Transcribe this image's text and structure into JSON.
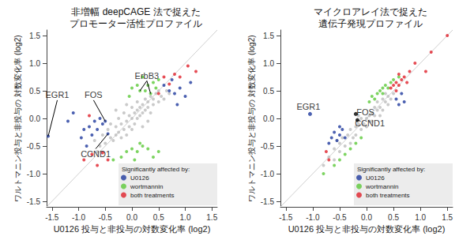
{
  "chart_data": [
    {
      "type": "scatter",
      "title": "非増幅 deepCAGE 法で捉えた\nプロモーター活性プロファイル",
      "xlabel": "U0126 投与と非投与の対数変化率 (log2)",
      "ylabel": "ワルトマニン投与と非投与の 対数変化率 (log2)",
      "xlim": [
        -1.6,
        1.6
      ],
      "ylim": [
        -1.6,
        1.6
      ],
      "xticks": [
        {
          "value": -1.5,
          "label": "-1.5"
        },
        {
          "value": -1,
          "label": "-1.0"
        },
        {
          "value": -0.5,
          "label": "-0.5"
        },
        {
          "value": 0,
          "label": "0.0"
        },
        {
          "value": 0.5,
          "label": "0.5"
        },
        {
          "value": 1,
          "label": "1.0"
        },
        {
          "value": 1.5,
          "label": "1.5"
        }
      ],
      "yticks": [
        {
          "value": -1.5,
          "label": "-1.5"
        },
        {
          "value": -1,
          "label": "-1.0"
        },
        {
          "value": -0.5,
          "label": "-0.5"
        },
        {
          "value": 0,
          "label": "0.0"
        },
        {
          "value": 0.5,
          "label": "0.5"
        },
        {
          "value": 1,
          "label": "1.0"
        },
        {
          "value": 1.5,
          "label": "1.5"
        }
      ],
      "grid": false,
      "marker": "circle",
      "legend": "lower right",
      "legend_title": "Significantly affected by:",
      "series": [
        {
          "color": "#bdbdbd",
          "x": [
            -0.6,
            -0.55,
            -0.5,
            -0.45,
            -0.4,
            -0.4,
            -0.35,
            -0.3,
            -0.3,
            -0.25,
            -0.25,
            -0.2,
            -0.2,
            -0.15,
            -0.15,
            -0.1,
            -0.1,
            -0.05,
            -0.05,
            0,
            0,
            0,
            0.05,
            0.05,
            0.1,
            0.1,
            0.1,
            0.15,
            0.15,
            0.2,
            0.2,
            0.25,
            0.25,
            0.3,
            0.3,
            0.35,
            0.35,
            0.4,
            0.4,
            0.45,
            0.5,
            0.5,
            0.55,
            0.6,
            -0.7,
            -0.65,
            0.65,
            0.7,
            -0.3,
            0.2,
            -0.1,
            0.3
          ],
          "y": [
            -0.5,
            -0.3,
            -0.45,
            -0.2,
            -0.35,
            -0.1,
            -0.4,
            -0.15,
            -0.3,
            0,
            -0.25,
            -0.35,
            -0.1,
            0.1,
            -0.2,
            -0.05,
            -0.3,
            0.05,
            -0.15,
            0,
            0.2,
            -0.2,
            0.1,
            -0.1,
            0.15,
            0,
            0.3,
            0.05,
            0.2,
            0.25,
            0.1,
            0.35,
            0.15,
            0.3,
            0.2,
            0.4,
            0.1,
            0.35,
            0.25,
            0.45,
            0.3,
            0.5,
            0.4,
            0.35,
            -0.4,
            -0.6,
            0.5,
            0.45,
            0.15,
            -0.15,
            0.25,
            -0.05
          ]
        },
        {
          "name": "U0126",
          "color": "#1f3a9e",
          "x": [
            -1.57,
            -1.2,
            -1.1,
            -0.95,
            -0.9,
            -0.85,
            -0.8,
            -0.75,
            -0.7,
            -0.65,
            -0.6,
            -0.55,
            -0.5,
            -0.45,
            0.6,
            0.7,
            0.8,
            0.9,
            1.0,
            1.1,
            0.75,
            0.85
          ],
          "y": [
            -0.32,
            -0.05,
            0.1,
            -0.35,
            -0.2,
            -0.5,
            -0.15,
            -0.3,
            -0.05,
            -0.2,
            0,
            -0.1,
            -0.05,
            -0.28,
            0.6,
            0.5,
            0.45,
            0.55,
            0.4,
            0.65,
            0.7,
            0.25
          ]
        },
        {
          "name": "wortmannin",
          "color": "#5cc93a",
          "x": [
            0,
            0.1,
            0.15,
            0.2,
            -0.05,
            0.3,
            0.35,
            0.25,
            0.4,
            0.5,
            -0.1,
            0,
            0.1,
            0.2,
            0.3,
            0.4,
            -0.2,
            0.05,
            0.5,
            0.15,
            -0.35,
            0.45
          ],
          "y": [
            0.55,
            0.6,
            0.5,
            0.75,
            0.4,
            0.6,
            0.45,
            0.5,
            0.65,
            0.7,
            -0.6,
            -0.55,
            -0.6,
            -0.5,
            -0.55,
            -0.7,
            -0.7,
            -0.75,
            -0.6,
            -0.45,
            -0.75,
            0.55
          ]
        },
        {
          "name": "both treatments",
          "color": "#e0202a",
          "x": [
            -0.9,
            -0.75,
            -0.55,
            -0.45,
            -0.8,
            0.5,
            0.6,
            0.7,
            0.8,
            0.9,
            1.05,
            1.2,
            -0.65
          ],
          "y": [
            -0.75,
            -0.65,
            -0.62,
            -0.75,
            0.05,
            0.45,
            0.75,
            0.62,
            0.8,
            0.75,
            0.95,
            0.85,
            -0.85
          ]
        }
      ],
      "annotations": [
        {
          "text": "EGR1",
          "x": -1.4,
          "y": 0.33,
          "targets": [
            [
              -1.57,
              -0.32
            ]
          ]
        },
        {
          "text": "FOS",
          "x": -0.72,
          "y": 0.33,
          "targets": [
            [
              -0.5,
              -0.05
            ]
          ]
        },
        {
          "text": "CCND1",
          "x": -0.68,
          "y": -0.55,
          "targets": [
            [
              -0.45,
              -0.28
            ]
          ]
        },
        {
          "text": "ErbB3",
          "x": 0.28,
          "y": 0.68,
          "targets": [
            [
              0.15,
              0.5
            ],
            [
              0.35,
              0.45
            ]
          ]
        }
      ]
    },
    {
      "type": "scatter",
      "title": "マイクロアレイ法で捉えた\n遺伝子発現プロファイル",
      "xlabel": "U0126 投与と非投与の対数変化率 (log2)",
      "ylabel": "ワルトマニン投与と非投与の 対数変化率 (log2)",
      "xlim": [
        -1.6,
        1.6
      ],
      "ylim": [
        -1.6,
        1.6
      ],
      "xticks": [
        {
          "value": -1.5,
          "label": "-1.5"
        },
        {
          "value": -1,
          "label": "-1.0"
        },
        {
          "value": -0.5,
          "label": "-0.5"
        },
        {
          "value": 0,
          "label": "0.0"
        },
        {
          "value": 0.5,
          "label": "0.5"
        },
        {
          "value": 1,
          "label": "1.0"
        },
        {
          "value": 1.5,
          "label": "1.5"
        }
      ],
      "yticks": [
        {
          "value": -1.5,
          "label": "-1.5"
        },
        {
          "value": -1,
          "label": "-1.0"
        },
        {
          "value": -0.5,
          "label": "-0.5"
        },
        {
          "value": 0,
          "label": "0.0"
        },
        {
          "value": 0.5,
          "label": "0.5"
        },
        {
          "value": 1,
          "label": "1.0"
        },
        {
          "value": 1.5,
          "label": "1.5"
        }
      ],
      "grid": false,
      "marker": "circle",
      "legend": "lower right",
      "legend_title": "Significantly affected by:",
      "series": [
        {
          "color": "#bdbdbd",
          "x": [
            -0.7,
            -0.6,
            -0.6,
            -0.5,
            -0.5,
            -0.45,
            -0.4,
            -0.35,
            -0.3,
            -0.3,
            -0.25,
            -0.2,
            -0.2,
            -0.15,
            -0.1,
            -0.1,
            -0.05,
            0,
            0,
            0.05,
            0.05,
            0.1,
            0.1,
            0.15,
            0.15,
            0.2,
            0.2,
            0.25,
            0.3,
            0.3,
            0.35,
            0.4,
            0.4,
            0.45,
            0.5,
            -0.8,
            -0.55,
            0.35,
            -0.15,
            0.25
          ],
          "y": [
            -0.7,
            -0.55,
            -0.75,
            -0.45,
            -0.6,
            -0.35,
            -0.5,
            -0.3,
            -0.45,
            -0.2,
            -0.35,
            -0.15,
            -0.3,
            -0.1,
            -0.2,
            0,
            -0.1,
            0,
            -0.15,
            0.05,
            -0.05,
            0.1,
            -0.05,
            0.2,
            0.05,
            0.15,
            0.3,
            0.2,
            0.35,
            0.15,
            0.3,
            0.4,
            0.25,
            0.35,
            0.45,
            -0.85,
            -0.4,
            0.45,
            0.05,
            0.05
          ]
        },
        {
          "name": "U0126",
          "color": "#1f3a9e",
          "x": [
            -0.65,
            -0.6,
            -0.55,
            -0.5,
            -0.45,
            -0.7,
            -0.4,
            -0.5,
            0.55,
            0.65,
            0.7,
            0.6
          ],
          "y": [
            -0.35,
            -0.25,
            -0.4,
            -0.3,
            -0.2,
            -0.45,
            -0.35,
            -0.15,
            0.35,
            0.45,
            0.3,
            0.25
          ]
        },
        {
          "name": "wortmannin",
          "color": "#5cc93a",
          "x": [
            0.1,
            0.2,
            0.25,
            0.3,
            0.35,
            0.4,
            0.45,
            0.15,
            0.5,
            0.3,
            -0.3,
            -0.4,
            -0.2,
            -0.5,
            -0.6,
            -0.1,
            0.05,
            -0.8,
            0.6
          ],
          "y": [
            0.4,
            0.45,
            0.5,
            0.55,
            0.6,
            0.55,
            0.65,
            0.35,
            0.7,
            0.45,
            -0.55,
            -0.65,
            -0.45,
            -0.75,
            -0.85,
            -0.35,
            0.3,
            -1.0,
            0.75
          ]
        },
        {
          "name": "both treatments",
          "color": "#e0202a",
          "x": [
            0.45,
            0.5,
            0.55,
            0.6,
            0.65,
            0.7,
            0.55,
            0.6,
            0.75,
            0.8,
            1.1,
            1.2,
            1.5,
            -0.75,
            -0.7,
            0.9
          ],
          "y": [
            0.55,
            0.6,
            0.65,
            0.6,
            0.7,
            0.75,
            0.5,
            0.8,
            0.65,
            0.85,
            0.85,
            1.2,
            1.5,
            -0.6,
            -0.75,
            1.0
          ]
        }
      ],
      "annotations": [
        {
          "text": "EGR1",
          "x": -1.08,
          "y": 0.22,
          "point": [
            -1.05,
            0.08
          ],
          "color": "#1f3a9e"
        },
        {
          "text": "FOS",
          "x": -0.02,
          "y": 0.12,
          "point": [
            -0.2,
            0.08
          ],
          "color": "#000000"
        },
        {
          "text": "CCND1",
          "x": 0.06,
          "y": -0.09,
          "point": [
            -0.17,
            -0.03
          ],
          "color": "#000000"
        }
      ]
    }
  ]
}
